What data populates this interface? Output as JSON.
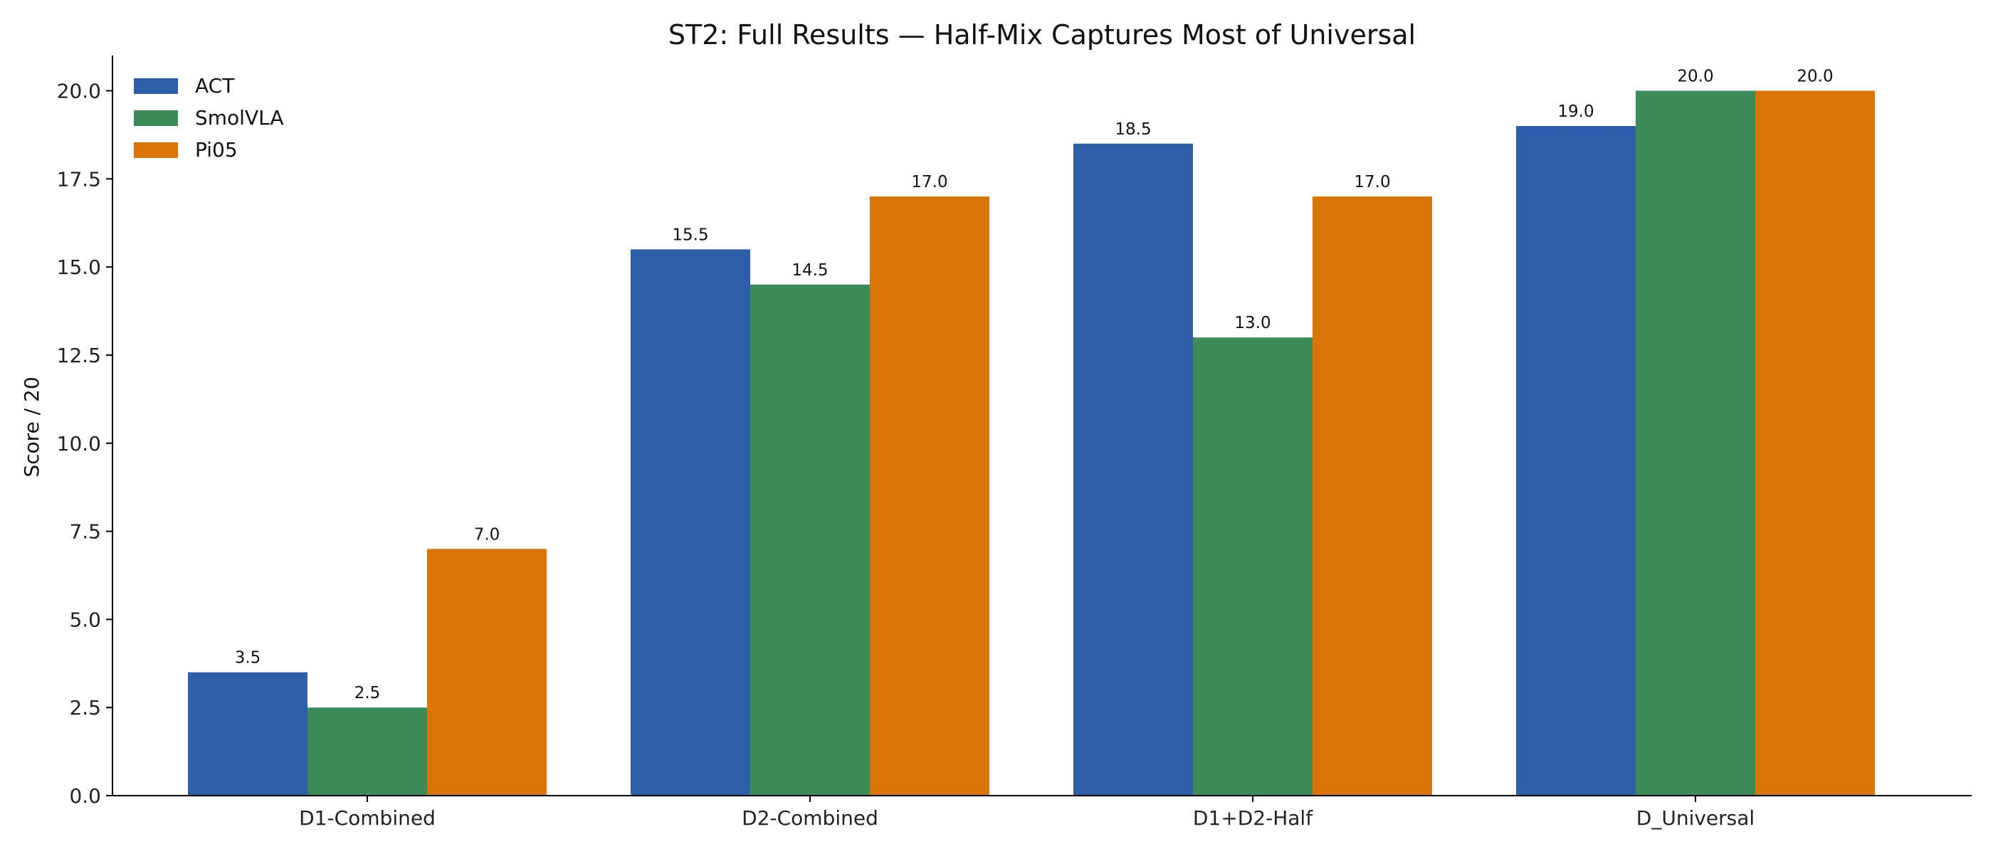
{
  "chart_data": {
    "type": "bar",
    "title": "ST2: Full Results — Half-Mix Captures Most of Universal",
    "xlabel": "",
    "ylabel": "Score / 20",
    "categories": [
      "D1-Combined",
      "D2-Combined",
      "D1+D2-Half",
      "D_Universal"
    ],
    "series": [
      {
        "name": "ACT",
        "color": "#2e5ea8",
        "values": [
          3.5,
          15.5,
          18.5,
          19.0
        ]
      },
      {
        "name": "SmolVLA",
        "color": "#3d8a5b",
        "values": [
          2.5,
          14.5,
          13.0,
          20.0
        ]
      },
      {
        "name": "Pi05",
        "color": "#d97506",
        "values": [
          7.0,
          17.0,
          17.0,
          20.0
        ]
      }
    ],
    "ylim": [
      0,
      21
    ],
    "yticks": [
      0.0,
      2.5,
      5.0,
      7.5,
      10.0,
      12.5,
      15.0,
      17.5,
      20.0
    ],
    "ytick_labels": [
      "0.0",
      "2.5",
      "5.0",
      "7.5",
      "10.0",
      "12.5",
      "15.0",
      "17.5",
      "20.0"
    ],
    "data_labels": [
      [
        "3.5",
        "15.5",
        "18.5",
        "19.0"
      ],
      [
        "2.5",
        "14.5",
        "13.0",
        "20.0"
      ],
      [
        "7.0",
        "17.0",
        "17.0",
        "20.0"
      ]
    ],
    "grid": false,
    "legend_position": "top-left"
  }
}
